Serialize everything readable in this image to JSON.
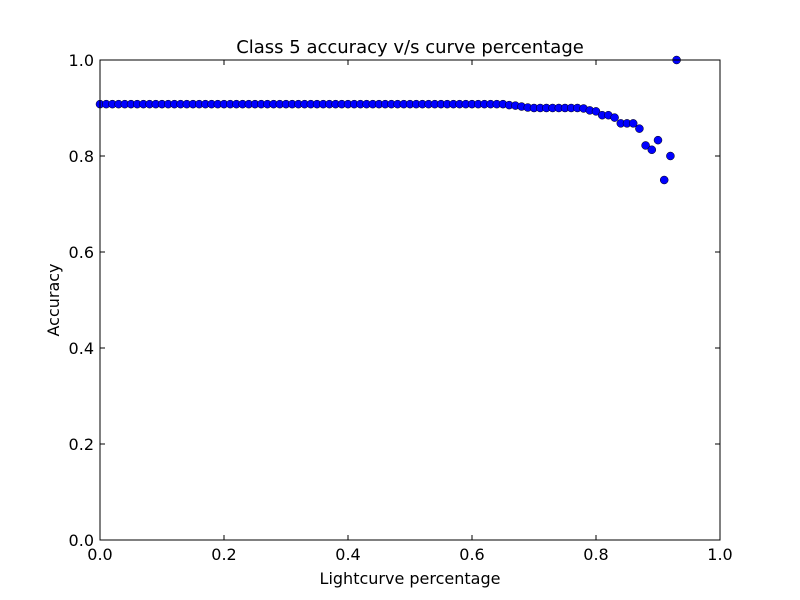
{
  "chart_data": {
    "type": "scatter",
    "title": "Class 5 accuracy v/s curve percentage",
    "xlabel": "Lightcurve percentage",
    "ylabel": "Accuracy",
    "xlim": [
      0.0,
      1.0
    ],
    "ylim": [
      0.0,
      1.0
    ],
    "xticks": [
      "0.0",
      "0.2",
      "0.4",
      "0.6",
      "0.8",
      "1.0"
    ],
    "yticks": [
      "0.0",
      "0.2",
      "0.4",
      "0.6",
      "0.8",
      "1.0"
    ],
    "grid": false,
    "legend": "none",
    "marker_color": "#0000ff",
    "series": [
      {
        "x": [
          0.0,
          0.01,
          0.02,
          0.03,
          0.04,
          0.05,
          0.06,
          0.07,
          0.08,
          0.09,
          0.1,
          0.11,
          0.12,
          0.13,
          0.14,
          0.15,
          0.16,
          0.17,
          0.18,
          0.19,
          0.2,
          0.21,
          0.22,
          0.23,
          0.24,
          0.25,
          0.26,
          0.27,
          0.28,
          0.29,
          0.3,
          0.31,
          0.32,
          0.33,
          0.34,
          0.35,
          0.36,
          0.37,
          0.38,
          0.39,
          0.4,
          0.41,
          0.42,
          0.43,
          0.44,
          0.45,
          0.46,
          0.47,
          0.48,
          0.49,
          0.5,
          0.51,
          0.52,
          0.53,
          0.54,
          0.55,
          0.56,
          0.57,
          0.58,
          0.59,
          0.6,
          0.61,
          0.62,
          0.63,
          0.64,
          0.65,
          0.66,
          0.67,
          0.68,
          0.69,
          0.7,
          0.71,
          0.72,
          0.73,
          0.74,
          0.75,
          0.76,
          0.77,
          0.78,
          0.79,
          0.8,
          0.81,
          0.82,
          0.83,
          0.84,
          0.85,
          0.86,
          0.87,
          0.88,
          0.89,
          0.9,
          0.91,
          0.92,
          0.93
        ],
        "y": [
          0.908,
          0.908,
          0.908,
          0.908,
          0.908,
          0.908,
          0.908,
          0.908,
          0.908,
          0.908,
          0.908,
          0.908,
          0.908,
          0.908,
          0.908,
          0.908,
          0.908,
          0.908,
          0.908,
          0.908,
          0.908,
          0.908,
          0.908,
          0.908,
          0.908,
          0.908,
          0.908,
          0.908,
          0.908,
          0.908,
          0.908,
          0.908,
          0.908,
          0.908,
          0.908,
          0.908,
          0.908,
          0.908,
          0.908,
          0.908,
          0.908,
          0.908,
          0.908,
          0.908,
          0.908,
          0.908,
          0.908,
          0.908,
          0.908,
          0.908,
          0.908,
          0.908,
          0.908,
          0.908,
          0.908,
          0.908,
          0.908,
          0.908,
          0.908,
          0.908,
          0.908,
          0.908,
          0.908,
          0.908,
          0.908,
          0.908,
          0.906,
          0.905,
          0.903,
          0.901,
          0.9,
          0.9,
          0.9,
          0.9,
          0.9,
          0.9,
          0.9,
          0.9,
          0.899,
          0.895,
          0.893,
          0.885,
          0.885,
          0.88,
          0.868,
          0.868,
          0.868,
          0.857,
          0.822,
          0.813,
          0.833,
          0.75,
          0.8,
          1.0
        ]
      }
    ]
  }
}
